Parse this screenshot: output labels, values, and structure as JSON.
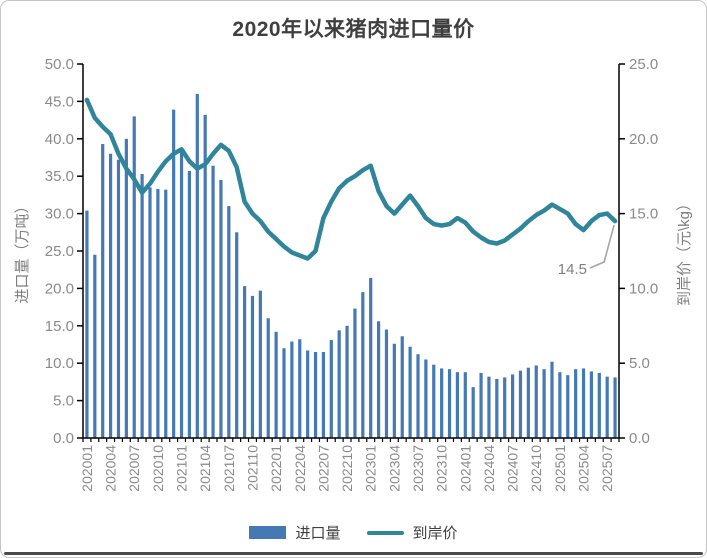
{
  "card": {
    "title": "2020年以来猪肉进口量价"
  },
  "chart_data": {
    "type": "bar+line",
    "categories": [
      "202001",
      "202002",
      "202003",
      "202004",
      "202005",
      "202006",
      "202007",
      "202008",
      "202009",
      "202010",
      "202011",
      "202012",
      "202101",
      "202102",
      "202103",
      "202104",
      "202105",
      "202106",
      "202107",
      "202108",
      "202109",
      "202110",
      "202111",
      "202112",
      "202201",
      "202202",
      "202203",
      "202204",
      "202205",
      "202206",
      "202207",
      "202208",
      "202209",
      "202210",
      "202211",
      "202212",
      "202301",
      "202302",
      "202303",
      "202304",
      "202305",
      "202306",
      "202307",
      "202308",
      "202309",
      "202310",
      "202311",
      "202312",
      "202401",
      "202402",
      "202403",
      "202404",
      "202405",
      "202406",
      "202407",
      "202408",
      "202409",
      "202410",
      "202411",
      "202412",
      "202501",
      "202502",
      "202503",
      "202504",
      "202505",
      "202506",
      "202507",
      "202508"
    ],
    "x_label_interval": 3,
    "series": [
      {
        "name": "进口量",
        "type": "bar",
        "axis": "left",
        "color": "#4579b3",
        "values": [
          30.4,
          24.5,
          39.3,
          38.0,
          37.2,
          40.0,
          43.0,
          35.3,
          33.5,
          33.3,
          33.2,
          43.9,
          38.4,
          35.7,
          46.0,
          43.2,
          36.4,
          34.5,
          31.0,
          27.5,
          20.3,
          19.0,
          19.7,
          16.0,
          14.2,
          12.0,
          12.9,
          13.2,
          11.7,
          11.5,
          11.5,
          13.1,
          14.4,
          15.0,
          17.3,
          19.5,
          21.4,
          15.6,
          14.5,
          12.6,
          13.6,
          12.2,
          11.2,
          10.5,
          9.8,
          9.3,
          9.2,
          8.8,
          8.8,
          6.8,
          8.7,
          8.2,
          7.9,
          8.1,
          8.5,
          9.0,
          9.4,
          9.7,
          9.2,
          10.2,
          8.8,
          8.4,
          9.2,
          9.3,
          8.9,
          8.7,
          8.2,
          8.1
        ]
      },
      {
        "name": "到岸价",
        "type": "line",
        "axis": "right",
        "color": "#31859b",
        "values": [
          22.6,
          21.4,
          20.8,
          20.3,
          19.0,
          18.0,
          17.3,
          16.4,
          17.0,
          17.8,
          18.5,
          19.0,
          19.3,
          18.5,
          18.0,
          18.3,
          19.0,
          19.6,
          19.2,
          18.1,
          15.8,
          15.0,
          14.5,
          13.8,
          13.3,
          12.8,
          12.4,
          12.2,
          12.0,
          12.5,
          14.7,
          15.8,
          16.7,
          17.2,
          17.5,
          17.9,
          18.2,
          16.5,
          15.5,
          15.0,
          15.6,
          16.2,
          15.5,
          14.7,
          14.3,
          14.2,
          14.3,
          14.7,
          14.4,
          13.8,
          13.4,
          13.1,
          13.0,
          13.2,
          13.6,
          14.0,
          14.5,
          14.9,
          15.2,
          15.6,
          15.3,
          15.0,
          14.3,
          13.9,
          14.5,
          14.9,
          15.0,
          14.5
        ]
      }
    ],
    "left_axis": {
      "title": "进口量（万吨）",
      "min": 0,
      "max": 50,
      "step": 5,
      "tick_format": "0.0"
    },
    "right_axis": {
      "title": "到岸价（元\\kg）",
      "min": 0,
      "max": 25,
      "step": 5,
      "tick_format": "0.0"
    },
    "annotation": {
      "text": "14.5",
      "series": "到岸价",
      "category": "202508",
      "value": 14.5
    },
    "legend": {
      "items": [
        "进口量",
        "到岸价"
      ],
      "position": "bottom"
    },
    "grid": "off",
    "colors": {
      "axis_line": "#000000",
      "tick_text": "#8a8a8a",
      "axis_title_text": "#7f7f7f",
      "annotation_text": "#7f7f7f",
      "leader_line": "#a6a6a6"
    }
  }
}
